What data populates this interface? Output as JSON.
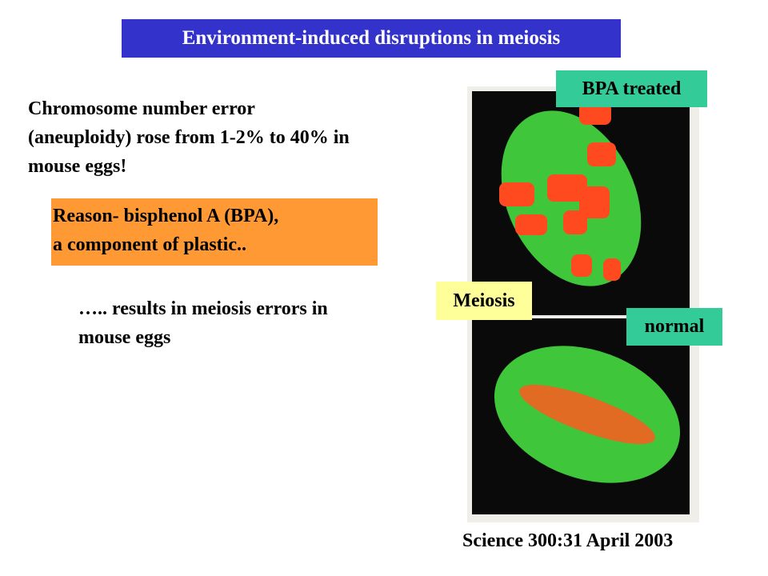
{
  "header": {
    "title": "Environment-induced disruptions in meiosis"
  },
  "statement": {
    "lines": [
      "Chromosome number error",
      "(aneuploidy) rose from 1-2% to 40% in",
      "mouse eggs!"
    ]
  },
  "reason": {
    "lines": [
      "Reason- bisphenol A (BPA),",
      "a component of plastic.."
    ]
  },
  "result": {
    "lines": [
      "….. results in meiosis errors in",
      "mouse eggs"
    ]
  },
  "figure": {
    "labels": {
      "treated": "BPA treated",
      "process": "Meiosis",
      "control": "normal"
    }
  },
  "citation": "Science 300:31 April 2003"
}
